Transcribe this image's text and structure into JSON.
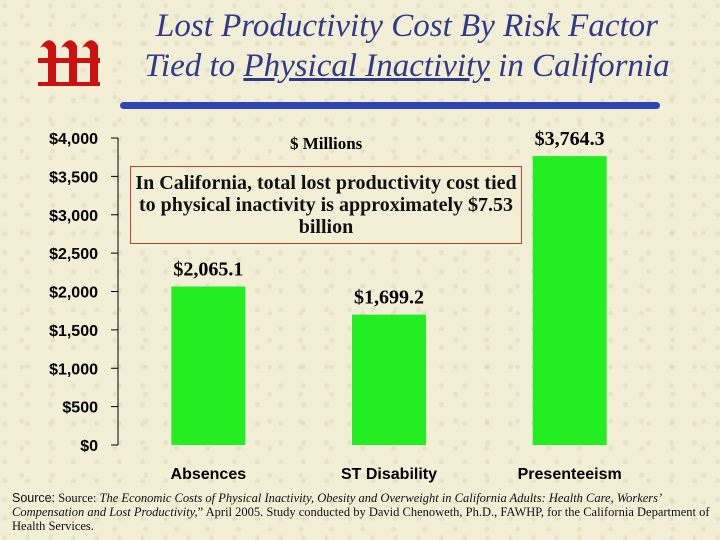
{
  "title": {
    "line1": "Lost Productivity Cost By Risk Factor",
    "line2_pre": "Tied to ",
    "line2_underlined": "Physical Inactivity",
    "line2_post": " in California"
  },
  "unit_label": "$ Millions",
  "callout": "In California, total lost productivity cost tied to physical inactivity is approximately $7.53 billion",
  "source": {
    "lead": "Source:",
    "prefix": "Source: ",
    "italic": "The Economic Costs of Physical Inactivity, Obesity and Overweight in California Adults: Health Care, Workers’ Compensation and Lost Productivity,",
    "rest": "” April 2005. Study conducted by David Chenoweth, Ph.D., FAWHP, for the California Department of Health Services."
  },
  "colors": {
    "bar": "#22ee22",
    "title": "#2f3a8a",
    "accent_rule": "#2f45b5",
    "callout_border": "#c04030",
    "logo": "#cc1111"
  },
  "icon": "logo-mark-icon",
  "chart_data": {
    "type": "bar",
    "categories": [
      "Absences",
      "ST Disability",
      "Presenteeism"
    ],
    "values": [
      2065.1,
      1699.2,
      3764.3
    ],
    "value_labels": [
      "$2,065.1",
      "$1,699.2",
      "$3,764.3"
    ],
    "ylim": [
      0,
      4000
    ],
    "yticks": [
      0,
      500,
      1000,
      1500,
      2000,
      2500,
      3000,
      3500,
      4000
    ],
    "ytick_labels": [
      "$0",
      "$500",
      "$1,000",
      "$1,500",
      "$2,000",
      "$2,500",
      "$3,000",
      "$3,500",
      "$4,000"
    ],
    "ylabel": "$ Millions",
    "grid": false,
    "legend": "none"
  }
}
